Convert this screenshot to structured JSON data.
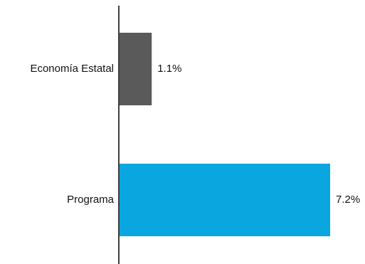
{
  "chart_data": {
    "type": "bar",
    "orientation": "horizontal",
    "categories": [
      "Economía Estatal",
      "Programa"
    ],
    "values": [
      1.1,
      7.2
    ],
    "value_labels": [
      "1.1%",
      "7.2%"
    ],
    "colors": [
      "#5a5a5a",
      "#0aa6df"
    ],
    "title": "",
    "xlabel": "",
    "ylabel": "",
    "xlim": [
      0,
      7.2
    ],
    "grid": false,
    "legend": "none"
  }
}
